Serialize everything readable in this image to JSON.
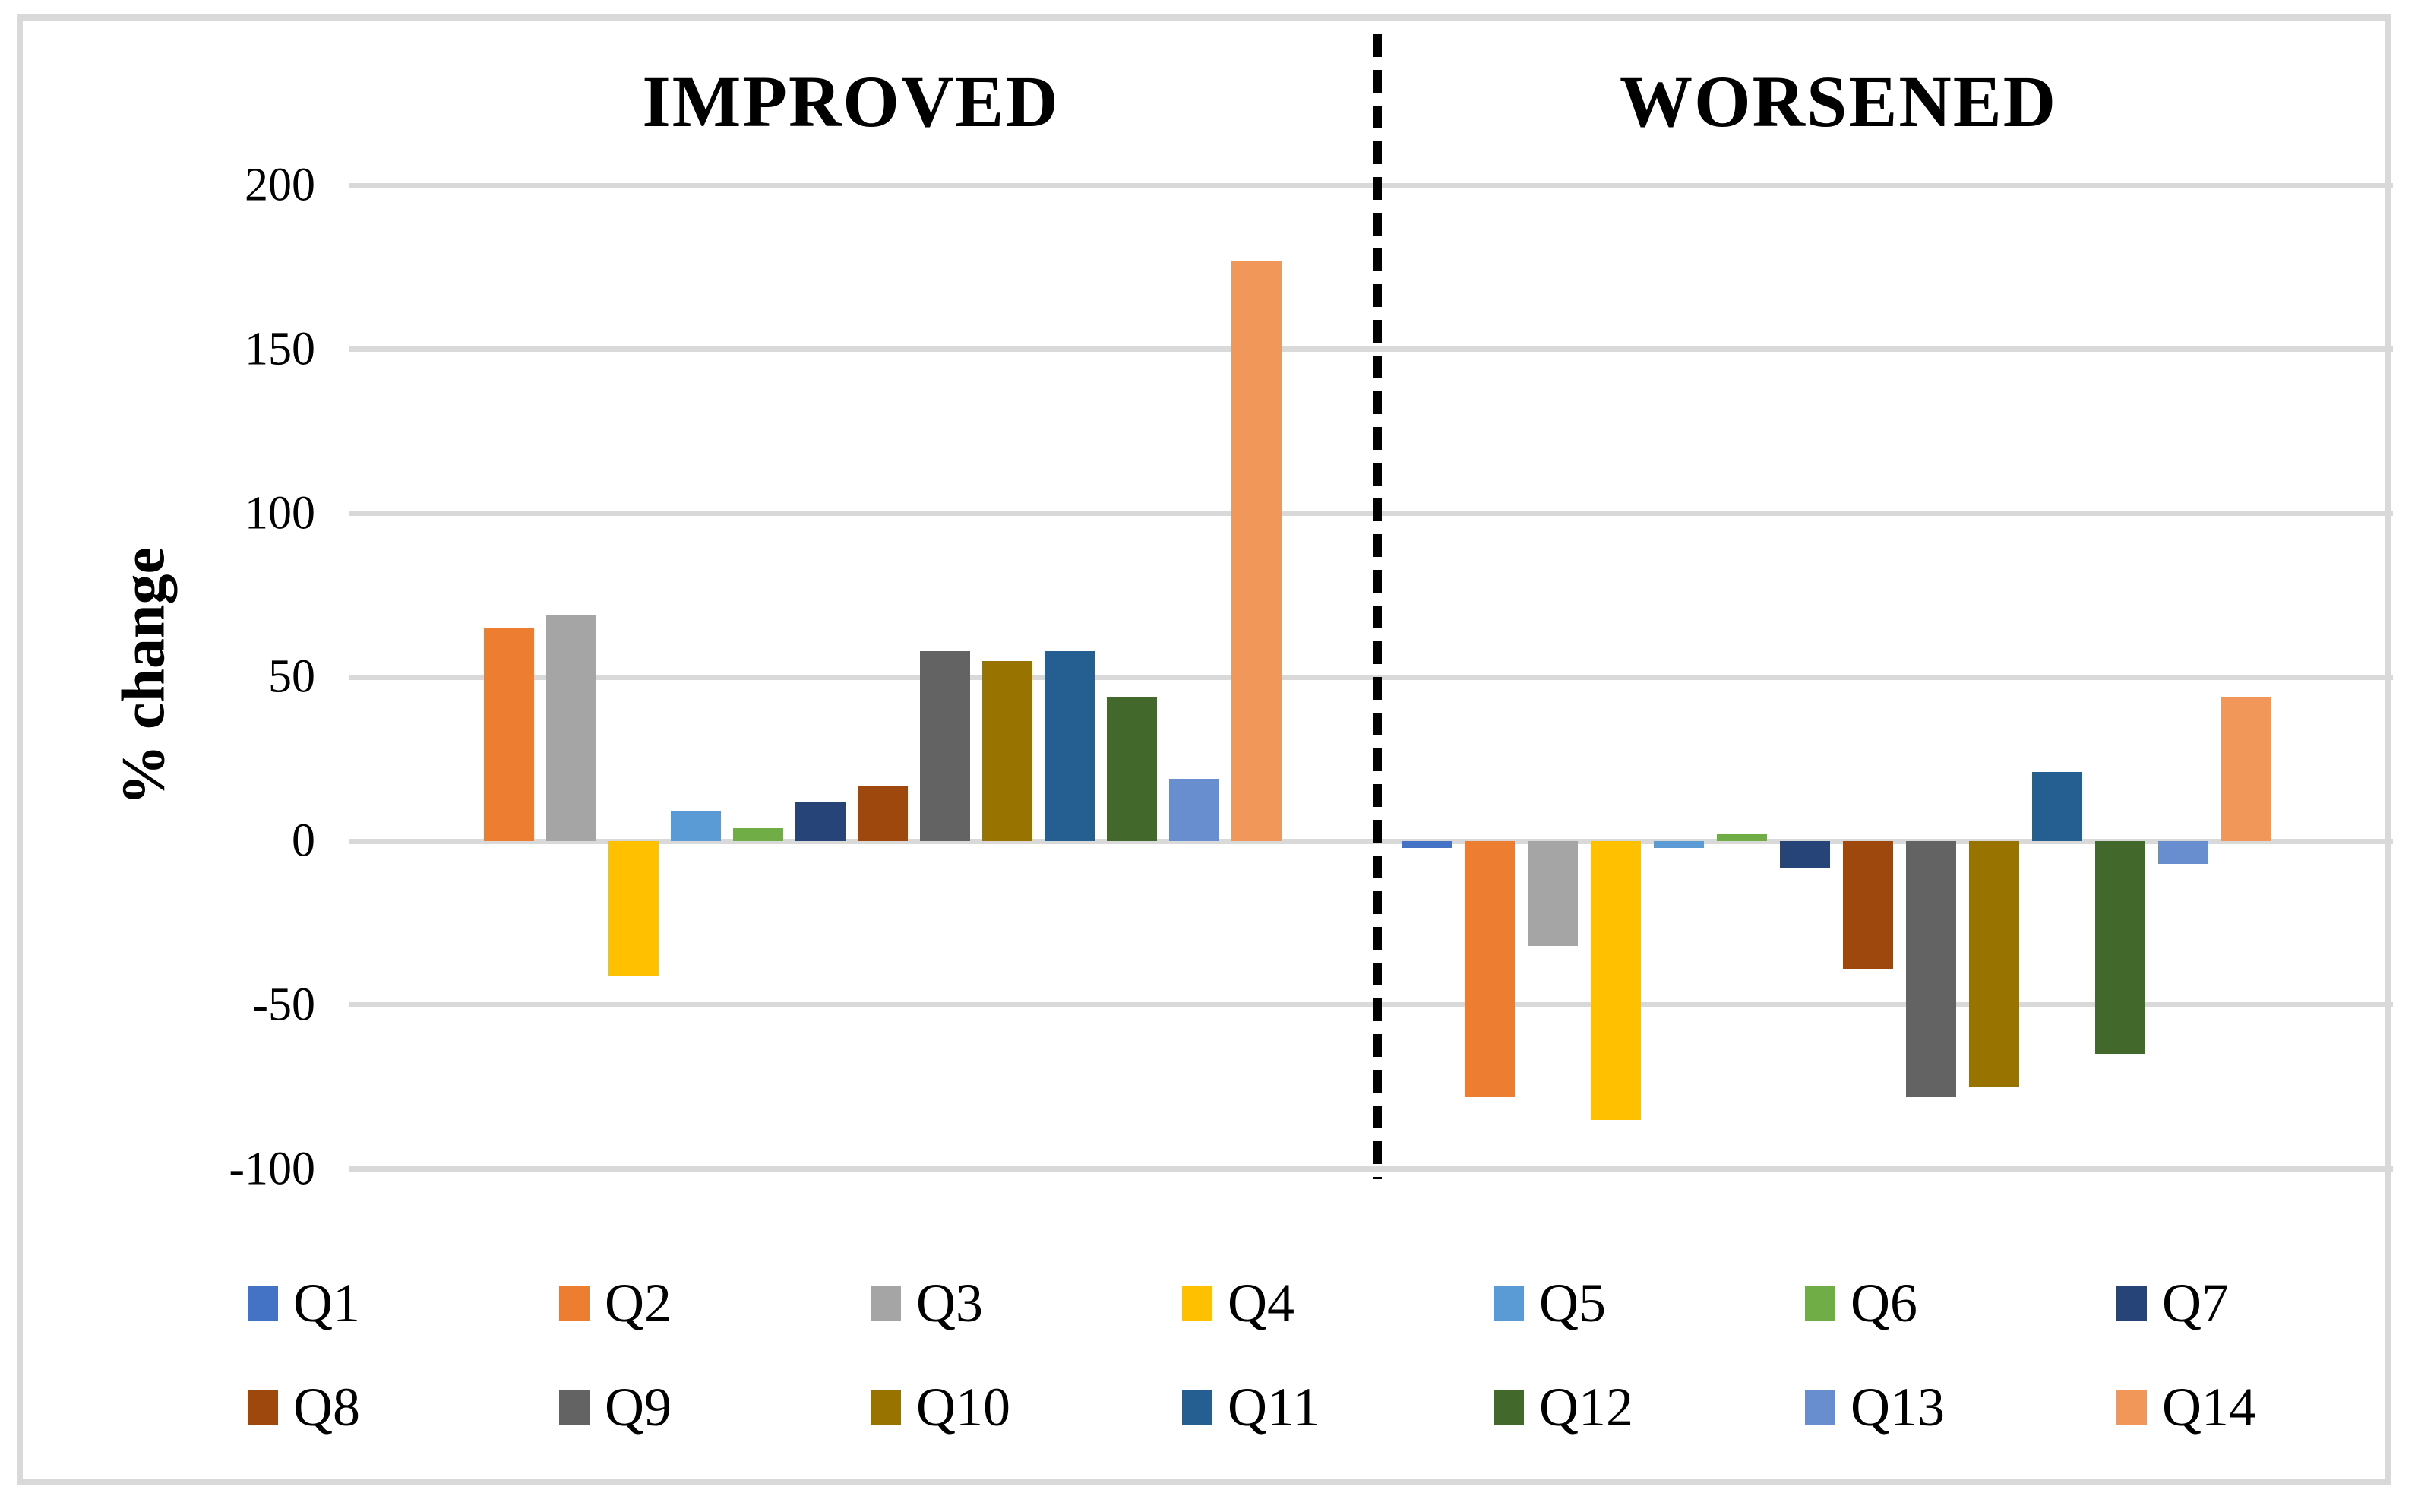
{
  "chart": {
    "section_titles": {
      "improved": "IMPROVED",
      "worsened": "WORSENED"
    },
    "y_axis": {
      "label": "% change",
      "tick_labels": [
        "200",
        "150",
        "100",
        "50",
        "0",
        "-50",
        "-100"
      ],
      "tick_values": [
        200,
        150,
        100,
        50,
        0,
        -50,
        -100
      ]
    }
  },
  "chart_data": {
    "type": "bar",
    "title": "",
    "xlabel": "",
    "ylabel": "% change",
    "ylim": [
      -100,
      200
    ],
    "grid": true,
    "legend_position": "bottom-two-rows",
    "categories": [
      "Q1",
      "Q2",
      "Q3",
      "Q4",
      "Q5",
      "Q6",
      "Q7",
      "Q8",
      "Q9",
      "Q10",
      "Q11",
      "Q12",
      "Q13",
      "Q14"
    ],
    "series_colors": [
      "#4472C4",
      "#ED7D31",
      "#A5A5A5",
      "#FFC000",
      "#5B9BD5",
      "#70AD47",
      "#264478",
      "#9E480E",
      "#636363",
      "#997300",
      "#255E91",
      "#43682B",
      "#698ED0",
      "#F1975A"
    ],
    "groups": [
      {
        "name": "IMPROVED",
        "values": [
          0,
          65,
          69,
          -41,
          9,
          4,
          12,
          17,
          58,
          55,
          58,
          44,
          19,
          177
        ]
      },
      {
        "name": "WORSENED",
        "values": [
          -2,
          -78,
          -32,
          -85,
          -2,
          2,
          -8,
          -39,
          -78,
          -75,
          21,
          -65,
          -7,
          44
        ]
      }
    ]
  },
  "colors": {
    "gridline": "#D9D9D9",
    "frame_border": "#D9D9D9",
    "divider": "#000000",
    "text": "#000000",
    "background": "#FFFFFF"
  }
}
